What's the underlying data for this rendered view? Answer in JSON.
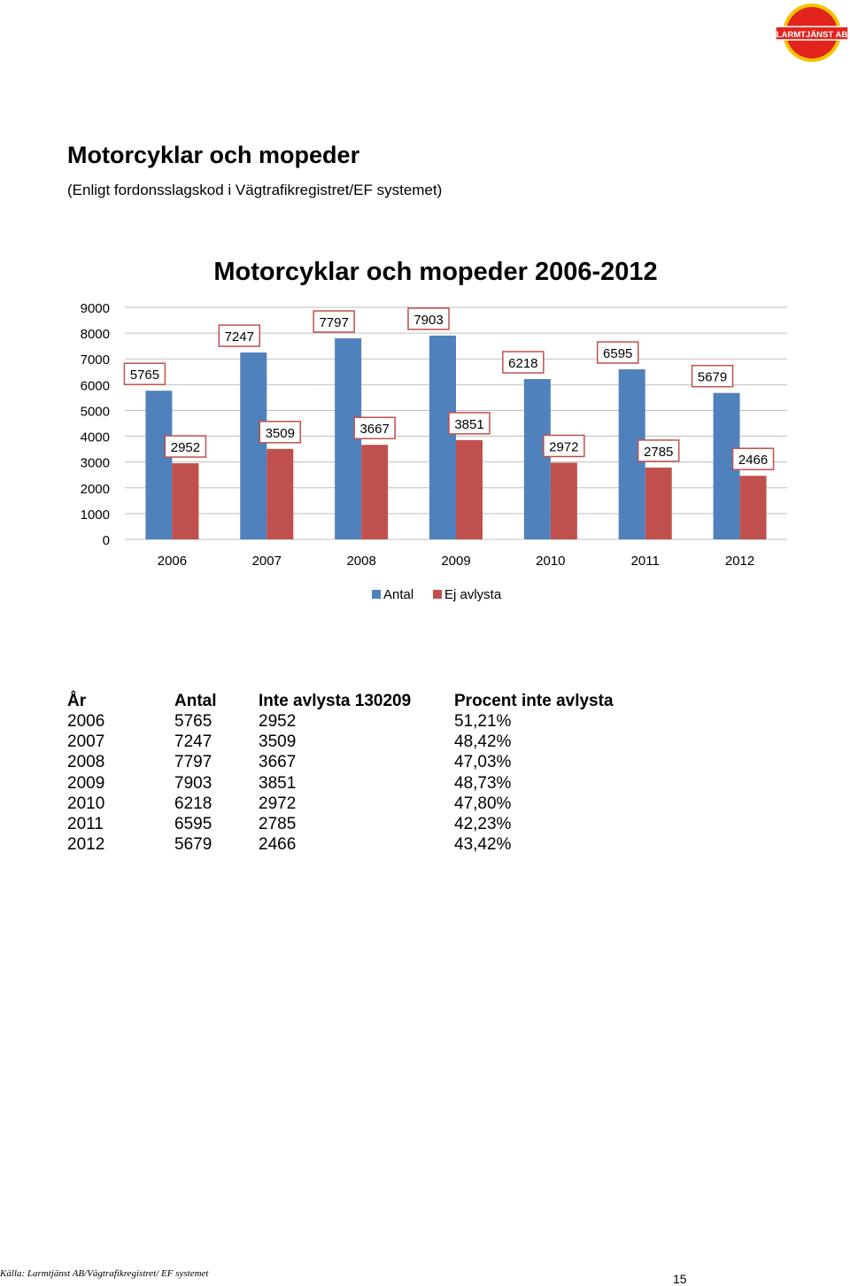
{
  "logo": {
    "text": "LARMTJÄNST AB",
    "colors": {
      "circle": "#e2241d",
      "ring": "#f5c400"
    }
  },
  "heading": "Motorcyklar och mopeder",
  "subheading": "(Enligt fordonsslagskod i Vägtrafikregistret/EF systemet)",
  "chart_data": {
    "type": "bar",
    "title": "Motorcyklar och mopeder 2006-2012",
    "categories": [
      "2006",
      "2007",
      "2008",
      "2009",
      "2010",
      "2011",
      "2012"
    ],
    "series": [
      {
        "name": "Antal",
        "values": [
          5765,
          7247,
          7797,
          7903,
          6218,
          6595,
          5679
        ],
        "color": "#4f81bd"
      },
      {
        "name": "Ej avlysta",
        "values": [
          2952,
          3509,
          3667,
          3851,
          2972,
          2785,
          2466
        ],
        "color": "#c0504d"
      }
    ],
    "ylim": [
      0,
      9000
    ],
    "yticks": [
      0,
      1000,
      2000,
      3000,
      4000,
      5000,
      6000,
      7000,
      8000,
      9000
    ],
    "grid": true,
    "legend": "bottom",
    "data_labels": true
  },
  "table": {
    "headers": [
      "År",
      "Antal",
      "Inte avlysta 130209",
      "Procent inte avlysta"
    ],
    "rows": [
      [
        "2006",
        "5765",
        "2952",
        "51,21%"
      ],
      [
        "2007",
        "7247",
        "3509",
        "48,42%"
      ],
      [
        "2008",
        "7797",
        "3667",
        "47,03%"
      ],
      [
        "2009",
        "7903",
        "3851",
        "48,73%"
      ],
      [
        "2010",
        "6218",
        "2972",
        "47,80%"
      ],
      [
        "2011",
        "6595",
        "2785",
        "42,23%"
      ],
      [
        "2012",
        "5679",
        "2466",
        "43,42%"
      ]
    ]
  },
  "footer": {
    "source": "Källa: Larmtjänst AB/Vägtrafikregistret/ EF systemet",
    "page": "15"
  }
}
